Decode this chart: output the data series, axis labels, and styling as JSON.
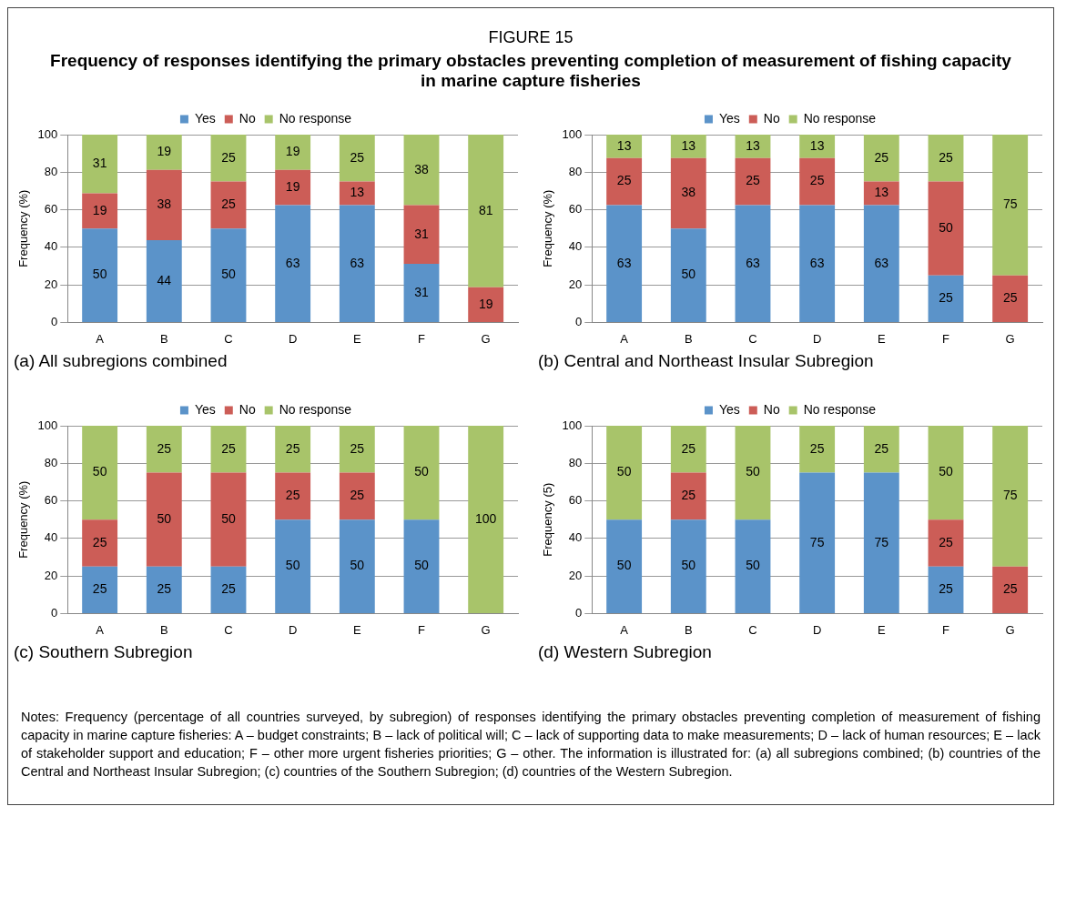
{
  "chart_data": [
    {
      "type": "other",
      "title": "FIGURE 15",
      "subtitle": "Frequency of responses identifying the primary obstacles preventing completion of measurement of fishing capacity in marine capture fisheries"
    },
    {
      "type": "bar",
      "title": "(a) All subregions combined",
      "ylabel": "Frequency (%)",
      "categories": [
        "A",
        "B",
        "C",
        "D",
        "E",
        "F",
        "G"
      ],
      "stacked": true,
      "ylim": [
        0,
        100
      ],
      "yticks": [
        0,
        20,
        40,
        60,
        80,
        100
      ],
      "grid": "y",
      "legend": "top",
      "series": [
        {
          "name": "Yes",
          "color": "#5b93c9",
          "values": [
            50,
            43.75,
            50,
            62.5,
            62.5,
            31.25,
            null
          ],
          "value_labels": [
            "50",
            "44",
            "50",
            "63",
            "63",
            "31",
            null
          ]
        },
        {
          "name": "No",
          "color": "#cc5d57",
          "values": [
            18.75,
            37.5,
            25,
            18.75,
            12.5,
            31.25,
            18.75
          ],
          "value_labels": [
            "19",
            "38",
            "25",
            "19",
            "13",
            "31",
            "19"
          ]
        },
        {
          "name": "No response",
          "color": "#a8c46a",
          "values": [
            31.25,
            18.75,
            25,
            18.75,
            25,
            37.5,
            81.25
          ],
          "value_labels": [
            "31",
            "19",
            "25",
            "19",
            "25",
            "38",
            "81"
          ]
        }
      ]
    },
    {
      "type": "bar",
      "title": "(b) Central and Northeast Insular Subregion",
      "ylabel": "Frequency (%)",
      "categories": [
        "A",
        "B",
        "C",
        "D",
        "E",
        "F",
        "G"
      ],
      "stacked": true,
      "ylim": [
        0,
        100
      ],
      "yticks": [
        0,
        20,
        40,
        60,
        80,
        100
      ],
      "grid": "y",
      "legend": "top",
      "series": [
        {
          "name": "Yes",
          "color": "#5b93c9",
          "values": [
            62.5,
            50,
            62.5,
            62.5,
            62.5,
            25,
            null
          ],
          "value_labels": [
            "63",
            "50",
            "63",
            "63",
            "63",
            "25",
            null
          ]
        },
        {
          "name": "No",
          "color": "#cc5d57",
          "values": [
            25,
            37.5,
            25,
            25,
            12.5,
            50,
            25
          ],
          "value_labels": [
            "25",
            "38",
            "25",
            "25",
            "13",
            "50",
            "25"
          ]
        },
        {
          "name": "No response",
          "color": "#a8c46a",
          "values": [
            12.5,
            12.5,
            12.5,
            12.5,
            25,
            25,
            75
          ],
          "value_labels": [
            "13",
            "13",
            "13",
            "13",
            "25",
            "25",
            "75"
          ]
        }
      ]
    },
    {
      "type": "bar",
      "title": "(c) Southern Subregion",
      "ylabel": "Frequency (%)",
      "categories": [
        "A",
        "B",
        "C",
        "D",
        "E",
        "F",
        "G"
      ],
      "stacked": true,
      "ylim": [
        0,
        100
      ],
      "yticks": [
        0,
        20,
        40,
        60,
        80,
        100
      ],
      "grid": "y",
      "legend": "top",
      "series": [
        {
          "name": "Yes",
          "color": "#5b93c9",
          "values": [
            25,
            25,
            25,
            50,
            50,
            50,
            null
          ],
          "value_labels": [
            "25",
            "25",
            "25",
            "50",
            "50",
            "50",
            null
          ]
        },
        {
          "name": "No",
          "color": "#cc5d57",
          "values": [
            25,
            50,
            50,
            25,
            25,
            null,
            null
          ],
          "value_labels": [
            "25",
            "50",
            "50",
            "25",
            "25",
            null,
            null
          ]
        },
        {
          "name": "No response",
          "color": "#a8c46a",
          "values": [
            50,
            25,
            25,
            25,
            25,
            50,
            100
          ],
          "value_labels": [
            "50",
            "25",
            "25",
            "25",
            "25",
            "50",
            "100"
          ]
        }
      ]
    },
    {
      "type": "bar",
      "title": "(d) Western Subregion",
      "ylabel": "Frequency (5)",
      "categories": [
        "A",
        "B",
        "C",
        "D",
        "E",
        "F",
        "G"
      ],
      "stacked": true,
      "ylim": [
        0,
        100
      ],
      "yticks": [
        0,
        20,
        40,
        60,
        80,
        100
      ],
      "grid": "y",
      "legend": "top",
      "series": [
        {
          "name": "Yes",
          "color": "#5b93c9",
          "values": [
            50,
            50,
            50,
            75,
            75,
            25,
            null
          ],
          "value_labels": [
            "50",
            "50",
            "50",
            "75",
            "75",
            "25",
            null
          ]
        },
        {
          "name": "No",
          "color": "#cc5d57",
          "values": [
            null,
            25,
            null,
            null,
            null,
            25,
            25
          ],
          "value_labels": [
            null,
            "25",
            null,
            null,
            null,
            "25",
            "25"
          ]
        },
        {
          "name": "No response",
          "color": "#a8c46a",
          "values": [
            50,
            25,
            50,
            25,
            25,
            50,
            75
          ],
          "value_labels": [
            "50",
            "25",
            "50",
            "25",
            "25",
            "50",
            "75"
          ]
        }
      ]
    },
    {
      "type": "other",
      "annotations": [
        "Notes: Frequency (percentage of all countries surveyed, by subregion) of responses identifying the primary obstacles preventing completion of measurement of fishing capacity in marine capture fisheries: A – budget constraints; B – lack of political will; C – lack of supporting data to make measurements; D – lack of human resources; E – lack of stakeholder support and education; F – other more urgent fisheries priorities; G – other. The information is illustrated for: (a) all subregions combined; (b) countries of the Central and Northeast Insular Subregion; (c) countries of the Southern Subregion; (d) countries of the Western Subregion."
      ]
    }
  ]
}
